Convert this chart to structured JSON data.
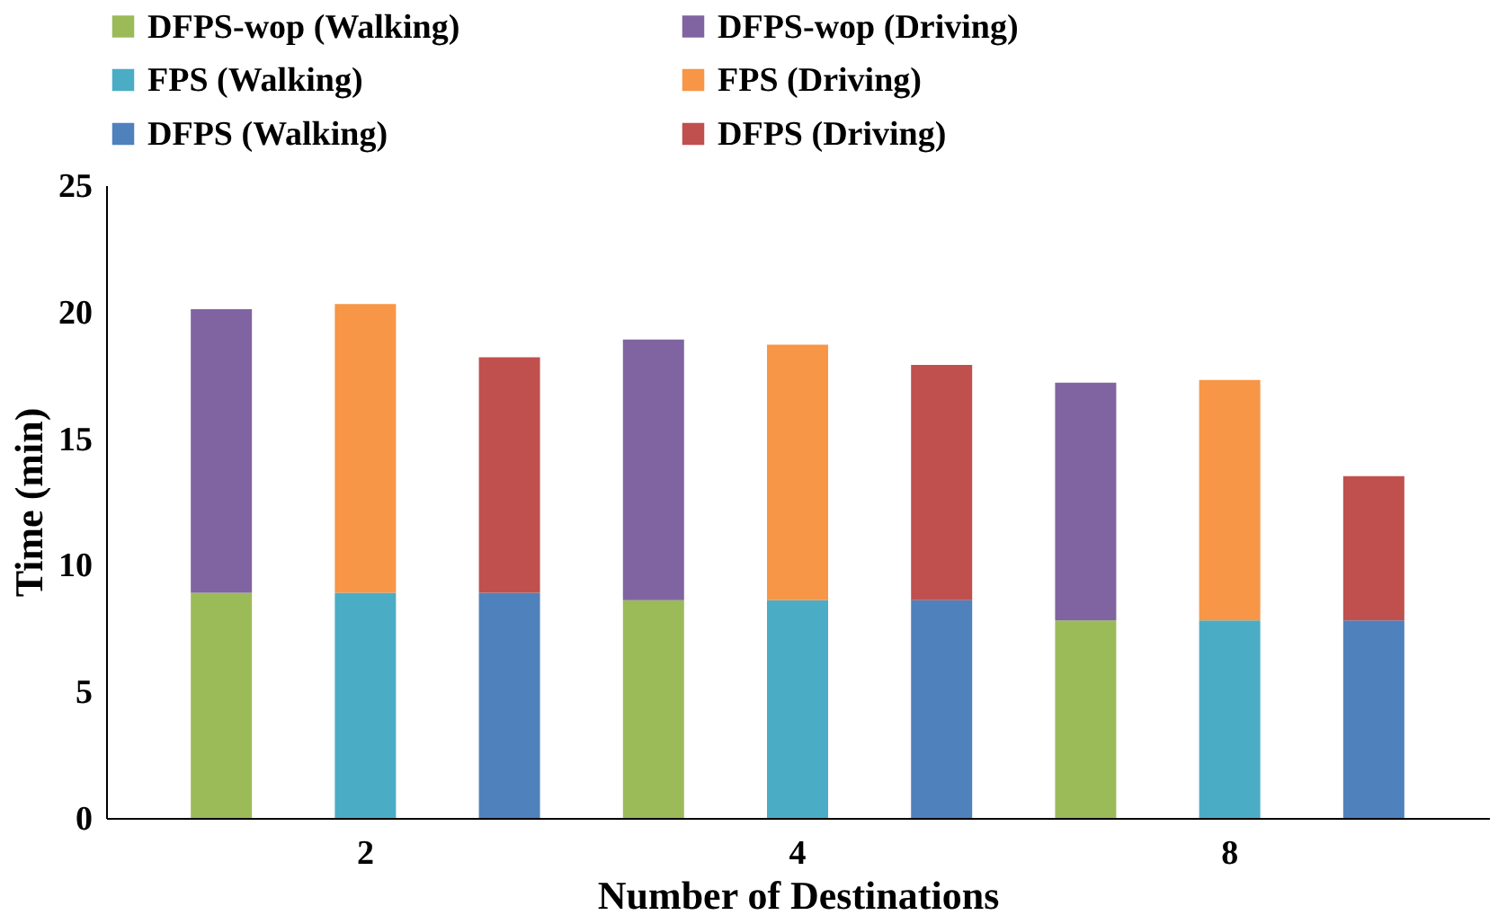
{
  "chart_data": {
    "type": "bar",
    "stacked": true,
    "xlabel": "Number of Destinations",
    "ylabel": "Time (min)",
    "categories": [
      null,
      "2",
      null,
      null,
      "4",
      null,
      null,
      "8",
      null
    ],
    "series": [
      {
        "name": "DFPS-wop (Walking)",
        "color": "#9bbb59",
        "values": [
          8.9,
          null,
          null,
          8.6,
          null,
          null,
          7.8,
          null,
          null
        ]
      },
      {
        "name": "DFPS-wop (Driving)",
        "color": "#8064a2",
        "values": [
          11.2,
          null,
          null,
          10.3,
          null,
          null,
          9.4,
          null,
          null
        ]
      },
      {
        "name": "FPS (Walking)",
        "color": "#4bacc6",
        "values": [
          null,
          8.9,
          null,
          null,
          8.6,
          null,
          null,
          7.8,
          null
        ]
      },
      {
        "name": "FPS (Driving)",
        "color": "#f79646",
        "values": [
          null,
          11.4,
          null,
          null,
          10.1,
          null,
          null,
          9.5,
          null
        ]
      },
      {
        "name": "DFPS (Walking)",
        "color": "#4f81bd",
        "values": [
          null,
          null,
          8.9,
          null,
          null,
          8.6,
          null,
          null,
          7.8
        ]
      },
      {
        "name": "DFPS (Driving)",
        "color": "#c0504d",
        "values": [
          null,
          null,
          9.3,
          null,
          null,
          9.3,
          null,
          null,
          5.7
        ]
      }
    ],
    "ylim": [
      0,
      25
    ],
    "yticks": [
      0,
      5,
      10,
      15,
      20,
      25
    ],
    "grid": false,
    "legend": "top"
  }
}
